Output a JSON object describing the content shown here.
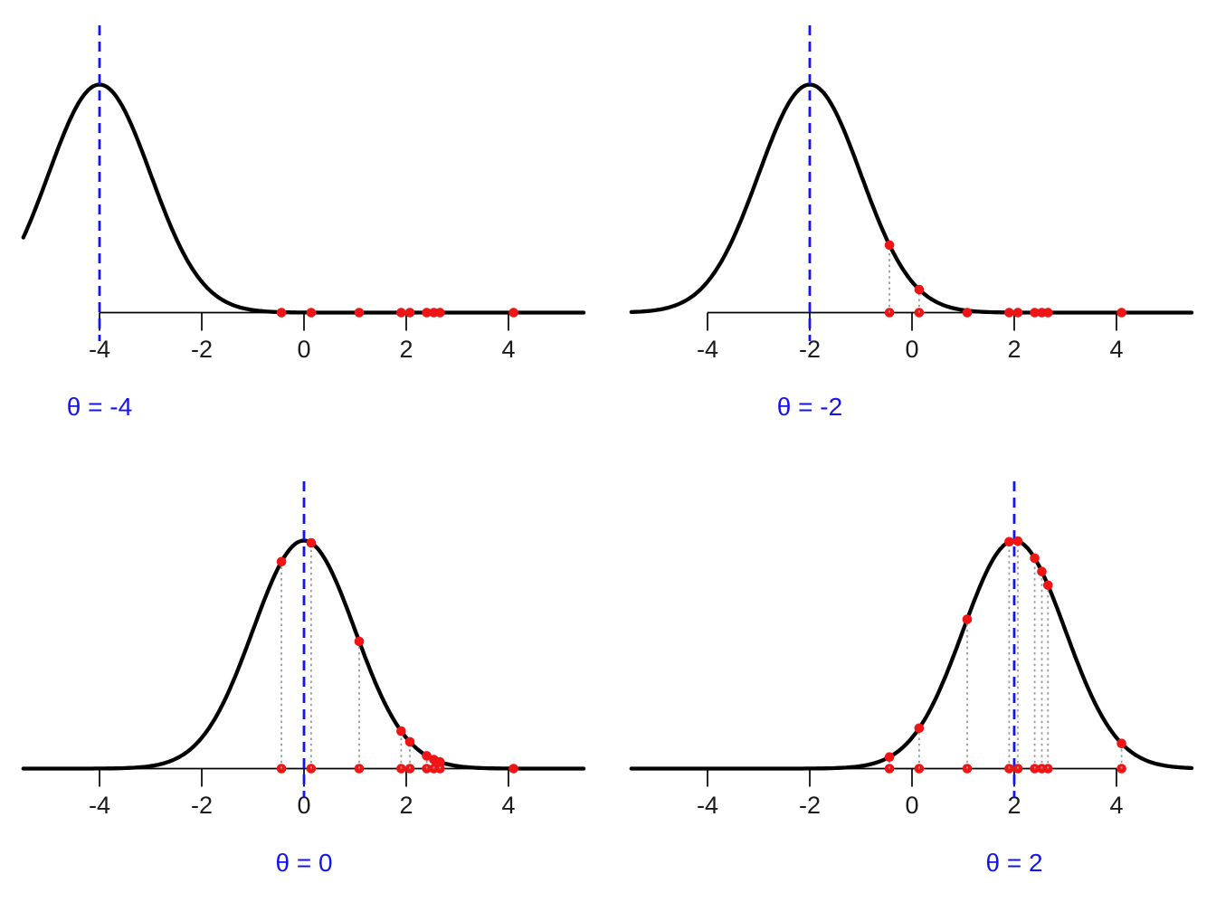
{
  "chart_data": {
    "type": "line",
    "title": "",
    "layout": "2x2 small multiples of a normal likelihood at different theta values",
    "distribution": "normal(theta, sigma=1)",
    "sigma": 1,
    "peak_density": 0.3989,
    "data_points": [
      -0.44,
      0.14,
      1.08,
      1.9,
      2.07,
      2.4,
      2.54,
      2.66,
      4.1
    ],
    "panels": [
      {
        "theta": -4,
        "label": "θ = -4"
      },
      {
        "theta": -2,
        "label": "θ = -2"
      },
      {
        "theta": 0,
        "label": "θ = 0"
      },
      {
        "theta": 2,
        "label": "θ = 2"
      }
    ],
    "x_ticks": [
      -4,
      -2,
      0,
      2,
      4
    ],
    "x_tick_labels": [
      "-4",
      "-2",
      "0",
      "2",
      "4"
    ],
    "xlim": [
      -5.5,
      5.5
    ],
    "grid": false,
    "legend": false,
    "annotations": "blue dashed vertical line at theta; red points on axis at data values; red points on density curve with gray dotted vertical guide lines"
  },
  "colors": {
    "background": "#ffffff",
    "curve": "#000000",
    "axis": "#000000",
    "tick_label": "#1a1a1a",
    "theta_line": "#1414eb",
    "theta_label": "#1414eb",
    "data_point": "#f01414",
    "guide_line": "#9a9a9a"
  }
}
